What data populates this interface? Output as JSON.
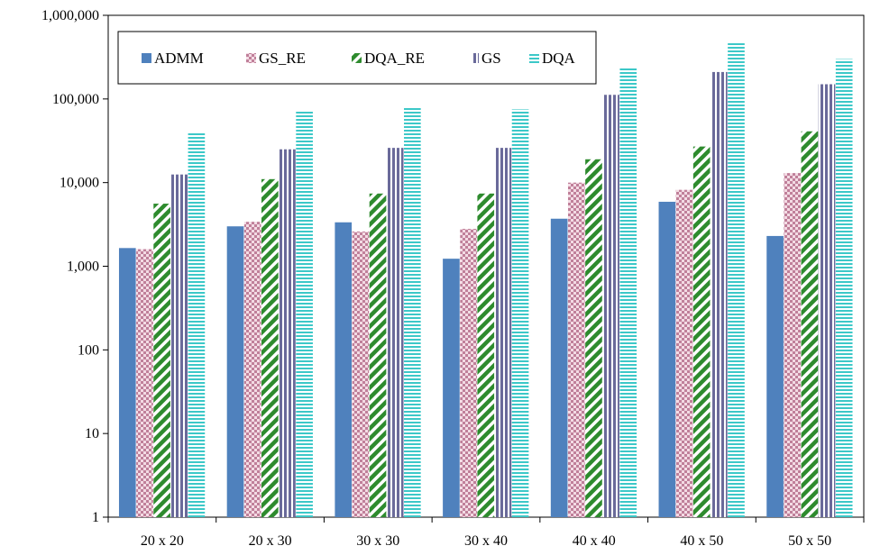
{
  "chart_data": {
    "type": "bar",
    "title": "",
    "xlabel": "",
    "ylabel": "",
    "y_scale": "log",
    "ylim": [
      1,
      1000000
    ],
    "y_ticks": [
      "1",
      "10",
      "100",
      "1,000",
      "10,000",
      "100,000",
      "1,000,000"
    ],
    "y_tick_values": [
      1,
      10,
      100,
      1000,
      10000,
      100000,
      1000000
    ],
    "grid": false,
    "legend_position": "top-left inside",
    "categories": [
      "20 x 20",
      "20 x 30",
      "30 x 30",
      "30 x 40",
      "40 x 40",
      "40 x 50",
      "50 x 50"
    ],
    "series": [
      {
        "name": "ADMM",
        "color": "#4f81bd",
        "pattern": "solid",
        "values": [
          1650,
          3000,
          3350,
          1230,
          3700,
          5900,
          2300
        ]
      },
      {
        "name": "GS_RE",
        "color": "#c0809a",
        "pattern": "checker",
        "values": [
          1600,
          3400,
          2600,
          2800,
          10000,
          8200,
          13000
        ]
      },
      {
        "name": "DQA_RE",
        "color": "#2e8b2e",
        "pattern": "diagonal",
        "values": [
          5600,
          11000,
          7400,
          7400,
          19000,
          27000,
          41000
        ]
      },
      {
        "name": "GS",
        "color": "#6a6a9a",
        "pattern": "vertical",
        "values": [
          12500,
          25000,
          26000,
          26000,
          112000,
          210000,
          150000
        ]
      },
      {
        "name": "DQA",
        "color": "#3cc8c8",
        "pattern": "horizontal",
        "values": [
          40000,
          72000,
          79000,
          75000,
          240000,
          480000,
          300000
        ]
      }
    ]
  }
}
